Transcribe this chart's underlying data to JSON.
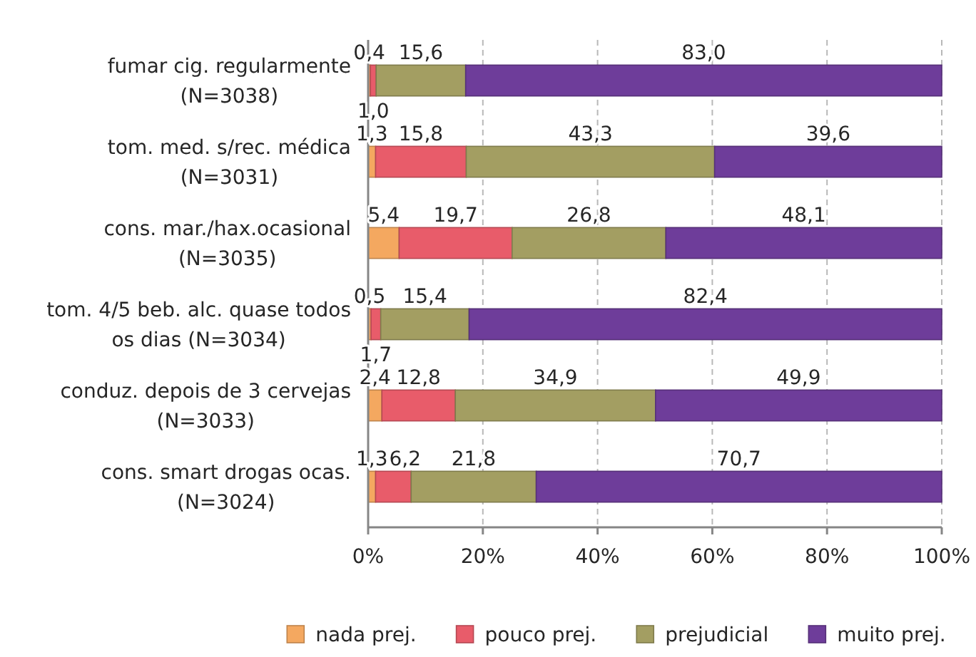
{
  "chart_data": {
    "type": "bar",
    "orientation": "horizontal",
    "stacked": true,
    "categories": [
      "fumar cig. regularmente\n(N=3038)",
      "tom. med. s/rec. médica\n(N=3031)",
      "cons. mar./hax.ocasional\n(N=3035)",
      "tom. 4/5 beb. alc. quase todos\nos dias (N=3034)",
      "conduz. depois de 3 cervejas\n(N=3033)",
      "cons. smart drogas ocas.\n(N=3024)"
    ],
    "series": [
      {
        "name": "nada prej.",
        "color": "#f4a860",
        "values": [
          0.4,
          1.3,
          5.4,
          0.5,
          2.4,
          1.3
        ],
        "value_labels": [
          "0,4",
          "1,3",
          "5,4",
          "0,5",
          "2,4",
          "1,3"
        ]
      },
      {
        "name": "pouco prej.",
        "color": "#e85c6a",
        "values": [
          1.0,
          15.8,
          19.7,
          1.7,
          12.8,
          6.2
        ],
        "value_labels": [
          "1,0",
          "15,8",
          "19,7",
          "1,7",
          "12,8",
          "6,2"
        ]
      },
      {
        "name": "prejudicial",
        "color": "#a39e62",
        "values": [
          15.6,
          43.3,
          26.8,
          15.4,
          34.9,
          21.8
        ],
        "value_labels": [
          "15,6",
          "43,3",
          "26,8",
          "15,4",
          "34,9",
          "21,8"
        ]
      },
      {
        "name": "muito prej.",
        "color": "#6e3d9a",
        "values": [
          83.0,
          39.6,
          48.1,
          82.4,
          49.9,
          70.7
        ],
        "value_labels": [
          "83,0",
          "39,6",
          "48,1",
          "82,4",
          "49,9",
          "70,7"
        ]
      }
    ],
    "xlim": [
      0,
      100
    ],
    "xticks": [
      {
        "value": 0,
        "label": "0%"
      },
      {
        "value": 20,
        "label": "20%"
      },
      {
        "value": 40,
        "label": "40%"
      },
      {
        "value": 60,
        "label": "60%"
      },
      {
        "value": 80,
        "label": "80%"
      },
      {
        "value": 100,
        "label": "100%"
      }
    ],
    "grid": "x",
    "legend": "bottom"
  }
}
